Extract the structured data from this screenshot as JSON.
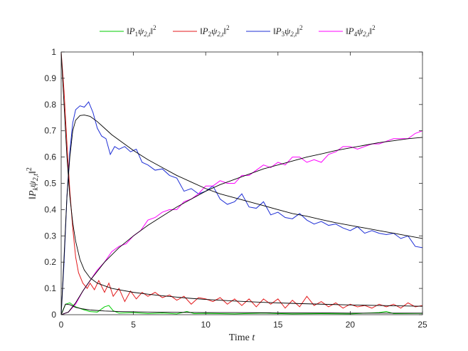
{
  "chart_data": {
    "type": "line",
    "xlabel": "Time t",
    "ylabel": "‖P_k ψ_{2,t}‖²",
    "xlim": [
      0,
      25
    ],
    "ylim": [
      0,
      1
    ],
    "x_ticks": [
      0,
      5,
      10,
      15,
      20,
      25
    ],
    "y_ticks": [
      0,
      0.1,
      0.2,
      0.3,
      0.4,
      0.5,
      0.6,
      0.7,
      0.8,
      0.9,
      1
    ],
    "x_tick_labels": [
      "0",
      "5",
      "10",
      "15",
      "20",
      "25"
    ],
    "y_tick_labels": [
      "0",
      "0.1",
      "0.2",
      "0.3",
      "0.4",
      "0.5",
      "0.6",
      "0.7",
      "0.8",
      "0.9",
      "1"
    ],
    "grid": false,
    "legend_position": "top",
    "series": [
      {
        "name": "‖P₁ψ₂,ₜ‖²",
        "legend_main": "‖P",
        "legend_sub1": "1",
        "legend_mid": "ψ",
        "legend_sub2": "2,t",
        "legend_end": "‖",
        "legend_sup": "2",
        "color": "#00cc00",
        "x": [
          0,
          0.3,
          0.6,
          1.0,
          1.5,
          2,
          2.5,
          3,
          3.3,
          3.6,
          4,
          5,
          6,
          7,
          8,
          8.7,
          9.2,
          10,
          12,
          14,
          16,
          18,
          20,
          22,
          22.5,
          23,
          25
        ],
        "y": [
          0,
          0.04,
          0.045,
          0.03,
          0.02,
          0.012,
          0.01,
          0.03,
          0.035,
          0.015,
          0.006,
          0.008,
          0.004,
          0.006,
          0.003,
          0.012,
          0.004,
          0.005,
          0.003,
          0.006,
          0.003,
          0.004,
          0.003,
          0.008,
          0.012,
          0.004,
          0.005
        ]
      },
      {
        "name": "‖P₂ψ₂,ₜ‖²",
        "legend_main": "‖P",
        "legend_sub1": "2",
        "legend_mid": "ψ",
        "legend_sub2": "2,t",
        "legend_end": "‖",
        "legend_sup": "2",
        "color": "#e31a1c",
        "x": [
          0,
          0.2,
          0.4,
          0.6,
          0.8,
          1.0,
          1.2,
          1.5,
          1.8,
          2.0,
          2.3,
          2.6,
          3.0,
          3.3,
          3.6,
          4.0,
          4.4,
          4.8,
          5.2,
          5.6,
          6.0,
          6.5,
          7,
          7.5,
          8,
          8.5,
          9,
          9.5,
          10,
          10.5,
          11,
          11.5,
          12,
          12.5,
          13,
          13.5,
          14,
          14.5,
          15,
          15.5,
          16,
          16.5,
          17,
          17.5,
          18,
          18.5,
          19,
          19.5,
          20,
          20.5,
          21,
          21.5,
          22,
          22.5,
          23,
          23.5,
          24,
          24.5,
          25
        ],
        "y": [
          1.0,
          0.85,
          0.65,
          0.47,
          0.33,
          0.22,
          0.16,
          0.12,
          0.1,
          0.12,
          0.095,
          0.13,
          0.085,
          0.12,
          0.07,
          0.1,
          0.05,
          0.09,
          0.06,
          0.085,
          0.07,
          0.085,
          0.065,
          0.075,
          0.055,
          0.07,
          0.04,
          0.065,
          0.06,
          0.05,
          0.065,
          0.04,
          0.06,
          0.035,
          0.06,
          0.03,
          0.06,
          0.04,
          0.06,
          0.025,
          0.055,
          0.03,
          0.07,
          0.035,
          0.05,
          0.03,
          0.045,
          0.025,
          0.04,
          0.03,
          0.035,
          0.025,
          0.04,
          0.03,
          0.04,
          0.025,
          0.045,
          0.03,
          0.035
        ]
      },
      {
        "name": "‖P₃ψ₂,ₜ‖²",
        "legend_main": "‖P",
        "legend_sub1": "3",
        "legend_mid": "ψ",
        "legend_sub2": "2,t",
        "legend_end": "‖",
        "legend_sup": "2",
        "color": "#1f2fd6",
        "x": [
          0,
          0.2,
          0.4,
          0.6,
          0.8,
          1.0,
          1.3,
          1.6,
          1.9,
          2.2,
          2.5,
          2.8,
          3.1,
          3.4,
          3.7,
          4.0,
          4.4,
          4.8,
          5.2,
          5.6,
          6.0,
          6.5,
          7,
          7.5,
          8,
          8.5,
          9,
          9.5,
          10,
          10.5,
          11,
          11.5,
          12,
          12.5,
          13,
          13.5,
          14,
          14.5,
          15,
          15.5,
          16,
          16.5,
          17,
          17.5,
          18,
          18.5,
          19,
          19.5,
          20,
          20.5,
          21,
          21.5,
          22,
          22.5,
          23,
          23.5,
          24,
          24.5,
          25
        ],
        "y": [
          0,
          0.2,
          0.45,
          0.62,
          0.73,
          0.78,
          0.795,
          0.79,
          0.81,
          0.77,
          0.71,
          0.68,
          0.67,
          0.61,
          0.64,
          0.63,
          0.64,
          0.62,
          0.63,
          0.58,
          0.57,
          0.55,
          0.555,
          0.53,
          0.52,
          0.47,
          0.48,
          0.46,
          0.47,
          0.49,
          0.44,
          0.42,
          0.43,
          0.46,
          0.41,
          0.405,
          0.43,
          0.38,
          0.39,
          0.37,
          0.365,
          0.385,
          0.36,
          0.345,
          0.355,
          0.34,
          0.345,
          0.33,
          0.32,
          0.335,
          0.31,
          0.32,
          0.31,
          0.305,
          0.31,
          0.29,
          0.3,
          0.26,
          0.255
        ]
      },
      {
        "name": "‖P₄ψ₂,ₜ‖²",
        "legend_main": "‖P",
        "legend_sub1": "4",
        "legend_mid": "ψ",
        "legend_sub2": "2,t",
        "legend_end": "‖",
        "legend_sup": "2",
        "color": "#ff00ff",
        "x": [
          0,
          0.5,
          1,
          1.5,
          2,
          2.5,
          3,
          3.5,
          4,
          4.5,
          5,
          5.5,
          6,
          6.5,
          7,
          7.5,
          8,
          8.5,
          9,
          9.5,
          10,
          10.5,
          11,
          11.5,
          12,
          12.5,
          13,
          13.5,
          14,
          14.5,
          15,
          15.5,
          16,
          16.5,
          17,
          17.5,
          18,
          18.5,
          19,
          19.5,
          20,
          20.5,
          21,
          21.5,
          22,
          22.5,
          23,
          23.5,
          24,
          24.5,
          25
        ],
        "y": [
          0,
          0.01,
          0.04,
          0.09,
          0.13,
          0.17,
          0.2,
          0.24,
          0.26,
          0.27,
          0.3,
          0.32,
          0.36,
          0.37,
          0.39,
          0.4,
          0.4,
          0.43,
          0.44,
          0.46,
          0.49,
          0.49,
          0.51,
          0.5,
          0.5,
          0.53,
          0.53,
          0.55,
          0.57,
          0.56,
          0.58,
          0.57,
          0.6,
          0.6,
          0.58,
          0.59,
          0.58,
          0.61,
          0.62,
          0.64,
          0.64,
          0.63,
          0.64,
          0.65,
          0.65,
          0.66,
          0.67,
          0.67,
          0.67,
          0.69,
          0.7
        ]
      },
      {
        "color": "#000000",
        "x": [
          0,
          0.3,
          0.6,
          1,
          1.5,
          2,
          3,
          4,
          5,
          6,
          8,
          10,
          12,
          15,
          18,
          20,
          22,
          25
        ],
        "y": [
          0,
          0.04,
          0.038,
          0.028,
          0.022,
          0.018,
          0.014,
          0.012,
          0.011,
          0.01,
          0.009,
          0.008,
          0.008,
          0.007,
          0.007,
          0.006,
          0.006,
          0.006
        ]
      },
      {
        "color": "#000000",
        "x": [
          0,
          0.2,
          0.4,
          0.6,
          0.8,
          1.0,
          1.3,
          1.6,
          2,
          2.5,
          3,
          3.5,
          4,
          5,
          6,
          7,
          8,
          9,
          10,
          12,
          14,
          16,
          18,
          20,
          22,
          25
        ],
        "y": [
          1.0,
          0.8,
          0.6,
          0.45,
          0.35,
          0.28,
          0.21,
          0.17,
          0.14,
          0.12,
          0.11,
          0.1,
          0.095,
          0.085,
          0.078,
          0.072,
          0.067,
          0.062,
          0.058,
          0.052,
          0.047,
          0.043,
          0.04,
          0.037,
          0.035,
          0.032
        ]
      },
      {
        "color": "#000000",
        "x": [
          0,
          0.2,
          0.4,
          0.6,
          0.8,
          1.0,
          1.3,
          1.6,
          2.0,
          2.5,
          3,
          3.5,
          4,
          5,
          6,
          7,
          8,
          9,
          10,
          11,
          12,
          13,
          14,
          15,
          16,
          17,
          18,
          19,
          20,
          21,
          22,
          23,
          24,
          25
        ],
        "y": [
          0,
          0.22,
          0.45,
          0.6,
          0.7,
          0.74,
          0.758,
          0.76,
          0.755,
          0.735,
          0.71,
          0.685,
          0.665,
          0.625,
          0.59,
          0.56,
          0.53,
          0.505,
          0.48,
          0.46,
          0.445,
          0.43,
          0.415,
          0.4,
          0.385,
          0.375,
          0.362,
          0.35,
          0.34,
          0.33,
          0.32,
          0.31,
          0.3,
          0.29
        ]
      },
      {
        "color": "#000000",
        "x": [
          0,
          0.5,
          1,
          1.5,
          2,
          3,
          4,
          5,
          6,
          7,
          8,
          9,
          10,
          11,
          12,
          13,
          14,
          15,
          16,
          17,
          18,
          19,
          20,
          21,
          22,
          23,
          24,
          25
        ],
        "y": [
          0,
          0.01,
          0.045,
          0.09,
          0.13,
          0.2,
          0.255,
          0.3,
          0.34,
          0.375,
          0.41,
          0.44,
          0.47,
          0.495,
          0.515,
          0.535,
          0.555,
          0.57,
          0.585,
          0.6,
          0.612,
          0.625,
          0.635,
          0.645,
          0.655,
          0.662,
          0.67,
          0.675
        ]
      }
    ]
  }
}
